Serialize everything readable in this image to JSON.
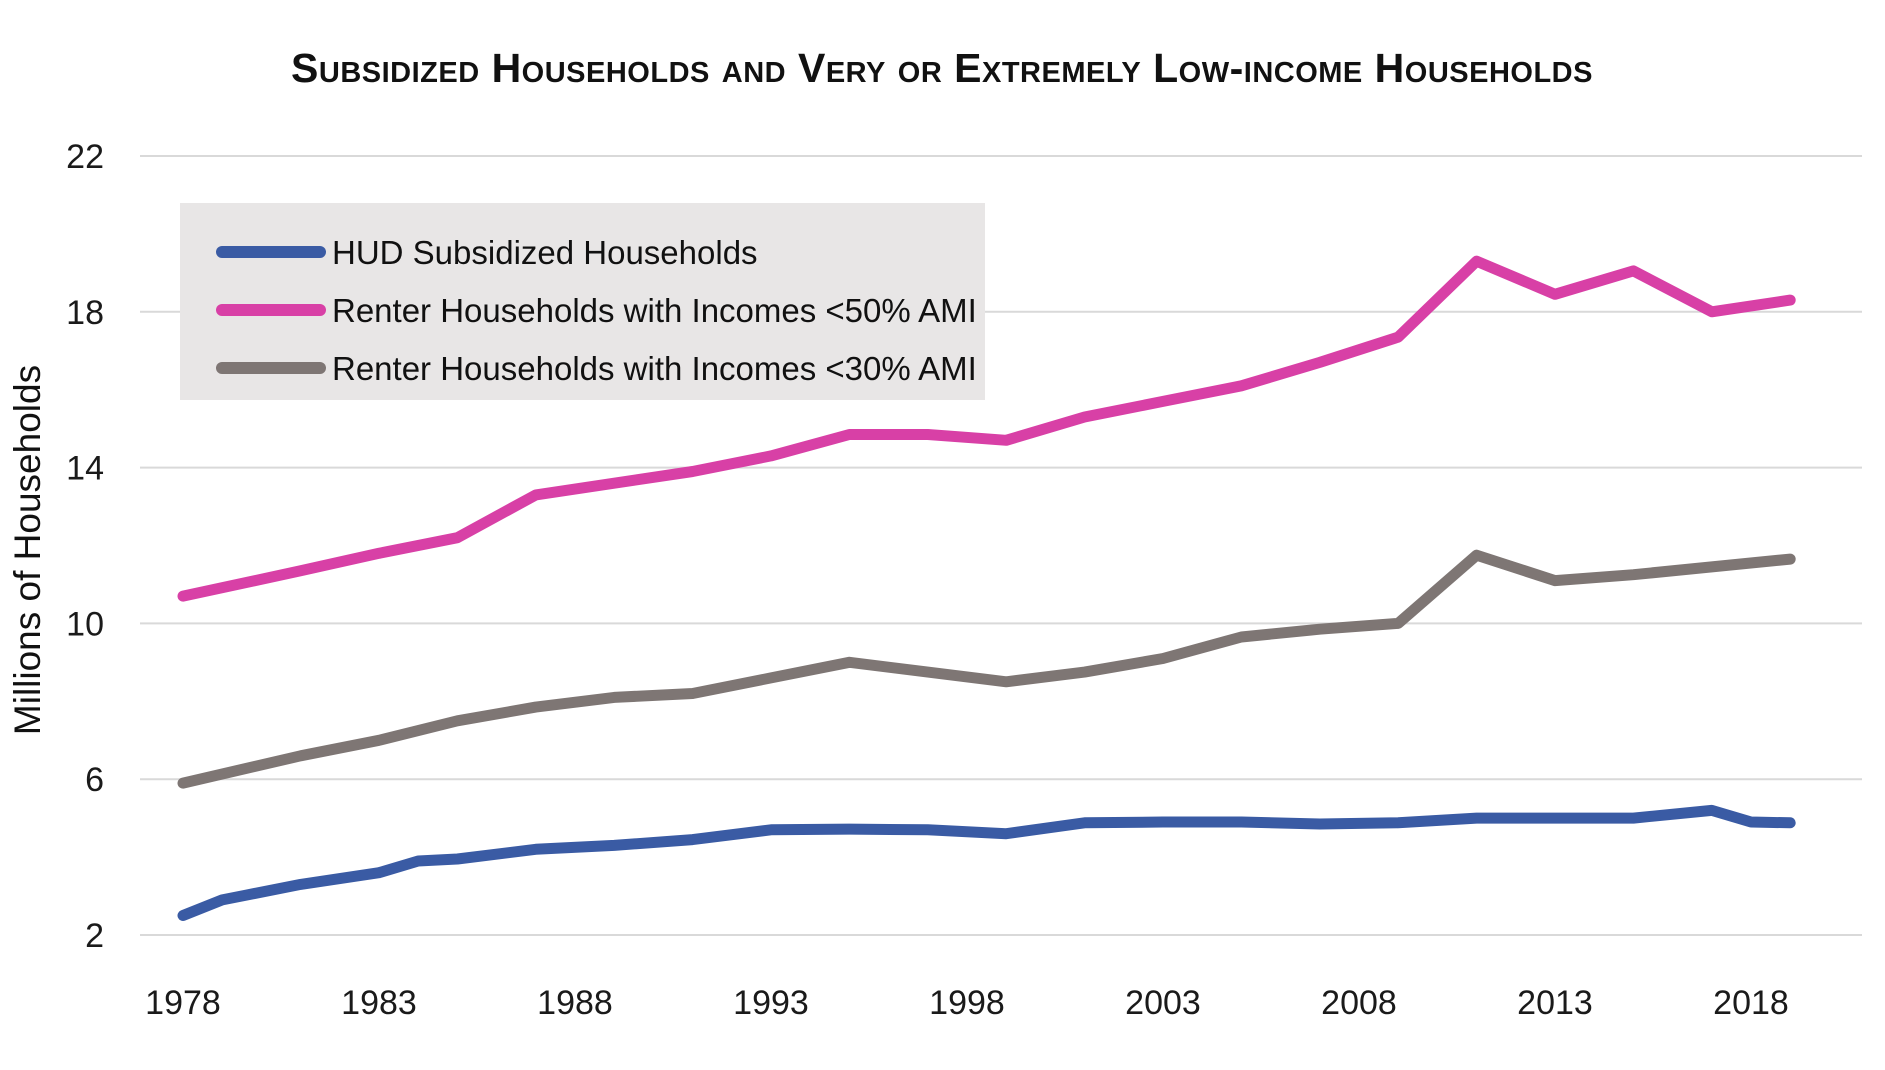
{
  "title": "Subsidized Households and Very or Extremely Low-income Households",
  "y_axis": {
    "label": "Millions of Households",
    "ticks": [
      22,
      18,
      14,
      10,
      6,
      2
    ]
  },
  "x_axis": {
    "ticks": [
      "1978",
      "1983",
      "1988",
      "1993",
      "1998",
      "2003",
      "2008",
      "2013",
      "2018"
    ]
  },
  "colors": {
    "gridline": "#d9d9d9",
    "legend_background": "#e8e6e6",
    "text": "#111111"
  },
  "chart_data": {
    "type": "line",
    "title": "Subsidized Households and Very or Extremely Low-income Households",
    "xlabel": "",
    "ylabel": "Millions of Households",
    "ylim": [
      2,
      22
    ],
    "xlim": [
      1976.9,
      2020.8
    ],
    "x_tick_years": [
      1978,
      1983,
      1988,
      1993,
      1998,
      2003,
      2008,
      2013,
      2018
    ],
    "y_tick_values": [
      22,
      18,
      14,
      10,
      6,
      2
    ],
    "grid": "horizontal",
    "legend_position": "top-left",
    "series": [
      {
        "name": "HUD Subsidized Households",
        "color": "#3a5ba4",
        "points": [
          [
            1978,
            2.5
          ],
          [
            1979,
            2.9
          ],
          [
            1981,
            3.3
          ],
          [
            1983,
            3.6
          ],
          [
            1984,
            3.9
          ],
          [
            1985,
            3.95
          ],
          [
            1987,
            4.2
          ],
          [
            1989,
            4.3
          ],
          [
            1991,
            4.45
          ],
          [
            1993,
            4.7
          ],
          [
            1995,
            4.72
          ],
          [
            1997,
            4.7
          ],
          [
            1999,
            4.6
          ],
          [
            2001,
            4.88
          ],
          [
            2003,
            4.9
          ],
          [
            2005,
            4.9
          ],
          [
            2007,
            4.85
          ],
          [
            2009,
            4.88
          ],
          [
            2011,
            5.0
          ],
          [
            2013,
            5.0
          ],
          [
            2015,
            5.0
          ],
          [
            2017,
            5.2
          ],
          [
            2018,
            4.9
          ],
          [
            2019,
            4.88
          ]
        ]
      },
      {
        "name": "Renter Households with Incomes <50% AMI",
        "color": "#d840a6",
        "points": [
          [
            1978,
            10.7
          ],
          [
            1981,
            11.35
          ],
          [
            1983,
            11.8
          ],
          [
            1985,
            12.2
          ],
          [
            1987,
            13.3
          ],
          [
            1989,
            13.6
          ],
          [
            1991,
            13.9
          ],
          [
            1993,
            14.3
          ],
          [
            1995,
            14.85
          ],
          [
            1997,
            14.85
          ],
          [
            1999,
            14.7
          ],
          [
            2001,
            15.3
          ],
          [
            2003,
            15.7
          ],
          [
            2005,
            16.1
          ],
          [
            2007,
            16.7
          ],
          [
            2009,
            17.35
          ],
          [
            2011,
            19.3
          ],
          [
            2013,
            18.45
          ],
          [
            2015,
            19.05
          ],
          [
            2017,
            18.0
          ],
          [
            2019,
            18.3
          ]
        ]
      },
      {
        "name": "Renter Households with Incomes <30% AMI",
        "color": "#7e7674",
        "points": [
          [
            1978,
            5.9
          ],
          [
            1981,
            6.6
          ],
          [
            1983,
            7.0
          ],
          [
            1985,
            7.5
          ],
          [
            1987,
            7.85
          ],
          [
            1989,
            8.1
          ],
          [
            1991,
            8.2
          ],
          [
            1993,
            8.6
          ],
          [
            1995,
            9.0
          ],
          [
            1997,
            8.75
          ],
          [
            1999,
            8.5
          ],
          [
            2001,
            8.75
          ],
          [
            2003,
            9.1
          ],
          [
            2005,
            9.65
          ],
          [
            2007,
            9.85
          ],
          [
            2009,
            10.0
          ],
          [
            2011,
            11.75
          ],
          [
            2013,
            11.1
          ],
          [
            2015,
            11.25
          ],
          [
            2017,
            11.45
          ],
          [
            2019,
            11.65
          ]
        ]
      }
    ]
  }
}
